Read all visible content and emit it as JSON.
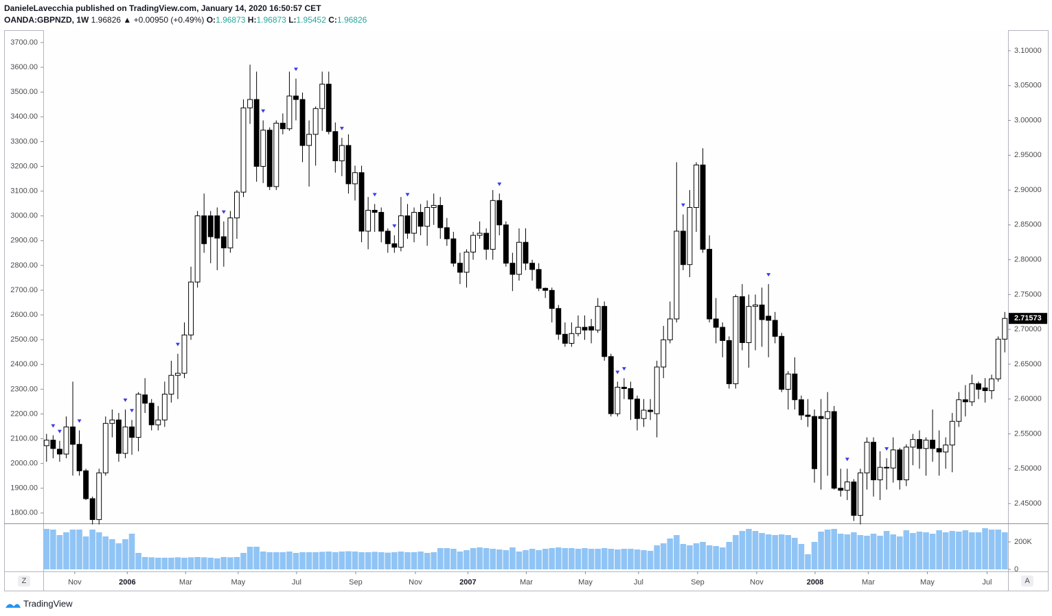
{
  "header": {
    "published": "DanieleLavecchia published on TradingView.com, January 14, 2020 16:50:57 CET",
    "symbol": "OANDA:GBPNZD, 1W",
    "last": "1.96826",
    "change": "▲ +0.00950 (+0.49%)",
    "o_label": "O:",
    "o": "1.96873",
    "h_label": "H:",
    "h": "1.96873",
    "l_label": "L:",
    "l": "1.95452",
    "c_label": "C:",
    "c": "1.96826"
  },
  "footer": {
    "logo": "TradingView",
    "left_button": "Z",
    "right_button": "A"
  },
  "chart_data": {
    "type": "candlestick",
    "grid": false,
    "up_color": "#ffffff",
    "down_color": "#000000",
    "volume_color": "#90c4f5",
    "signal_color": "#3b3bea",
    "open": [
      2.533,
      2.541,
      2.528,
      2.521,
      2.56,
      2.535,
      2.497,
      2.457,
      2.427,
      2.494,
      2.565,
      2.57,
      2.522,
      2.56,
      2.545,
      2.606,
      2.594,
      2.563,
      2.57,
      2.607,
      2.634,
      2.637,
      2.692,
      2.768,
      2.863,
      2.863,
      2.863,
      2.833,
      2.817,
      2.86,
      2.897,
      3.018,
      3.03,
      2.934,
      2.986,
      2.905,
      2.996,
      2.988,
      3.035,
      3.03,
      2.964,
      2.98,
      3.017,
      3.052,
      2.984,
      2.942,
      2.964,
      2.909,
      2.925,
      2.841,
      2.871,
      2.868,
      2.841,
      2.823,
      2.818,
      2.863,
      2.838,
      2.868,
      2.848,
      2.875,
      2.878,
      2.846,
      2.83,
      2.795,
      2.782,
      2.811,
      2.835,
      2.838,
      2.815,
      2.885,
      2.85,
      2.795,
      2.779,
      2.825,
      2.795,
      2.786,
      2.759,
      2.756,
      2.73,
      2.693,
      2.68,
      2.694,
      2.703,
      2.704,
      2.699,
      2.733,
      2.661,
      2.579,
      2.617,
      2.615,
      2.6,
      2.572,
      2.584,
      2.579,
      2.646,
      2.685,
      2.715,
      2.841,
      2.793,
      2.875,
      2.936,
      2.815,
      2.715,
      2.703,
      2.684,
      2.622,
      2.747,
      2.681,
      2.733,
      2.735,
      2.719,
      2.713,
      2.69,
      2.614,
      2.636,
      2.599,
      2.577,
      2.575,
      2.575,
      2.572,
      2.582,
      2.472,
      2.469,
      2.481,
      2.433,
      2.494,
      2.538,
      2.484,
      2.502,
      2.501,
      2.527,
      2.484,
      2.531,
      2.542,
      2.529,
      2.541,
      2.529,
      2.524,
      2.534,
      2.568,
      2.599,
      2.596,
      2.622,
      2.616,
      2.612,
      2.629,
      2.686
    ],
    "high": [
      2.55,
      2.548,
      2.54,
      2.575,
      2.625,
      2.555,
      2.5,
      2.46,
      2.5,
      2.575,
      2.585,
      2.58,
      2.585,
      2.57,
      2.61,
      2.63,
      2.6,
      2.59,
      2.625,
      2.655,
      2.665,
      2.71,
      2.79,
      2.87,
      2.895,
      2.87,
      2.875,
      2.855,
      2.87,
      2.9,
      3.03,
      3.08,
      3.07,
      3.0,
      2.99,
      3.0,
      3.01,
      3.07,
      3.06,
      3.04,
      3.0,
      3.02,
      3.07,
      3.07,
      2.997,
      2.975,
      2.98,
      2.935,
      2.935,
      2.89,
      2.88,
      2.875,
      2.845,
      2.835,
      2.89,
      2.88,
      2.875,
      2.88,
      2.885,
      2.895,
      2.89,
      2.86,
      2.84,
      2.81,
      2.815,
      2.84,
      2.855,
      2.845,
      2.9,
      2.895,
      2.855,
      2.81,
      2.845,
      2.845,
      2.8,
      2.795,
      2.76,
      2.76,
      2.735,
      2.71,
      2.71,
      2.72,
      2.72,
      2.715,
      2.745,
      2.74,
      2.665,
      2.625,
      2.63,
      2.625,
      2.605,
      2.6,
      2.6,
      2.655,
      2.705,
      2.74,
      2.94,
      2.865,
      2.9,
      2.94,
      2.96,
      2.835,
      2.745,
      2.71,
      2.69,
      2.75,
      2.765,
      2.75,
      2.75,
      2.76,
      2.765,
      2.725,
      2.695,
      2.64,
      2.66,
      2.605,
      2.6,
      2.585,
      2.6,
      2.61,
      2.59,
      2.5,
      2.5,
      2.485,
      2.5,
      2.545,
      2.545,
      2.525,
      2.515,
      2.545,
      2.53,
      2.535,
      2.55,
      2.555,
      2.545,
      2.585,
      2.555,
      2.545,
      2.58,
      2.61,
      2.62,
      2.635,
      2.625,
      2.63,
      2.635,
      2.69,
      2.725
    ],
    "low": [
      2.51,
      2.515,
      2.51,
      2.515,
      2.49,
      2.49,
      2.455,
      2.42,
      2.42,
      2.49,
      2.545,
      2.51,
      2.515,
      2.52,
      2.525,
      2.58,
      2.555,
      2.555,
      2.56,
      2.595,
      2.6,
      2.63,
      2.685,
      2.76,
      2.81,
      2.795,
      2.785,
      2.79,
      2.81,
      2.83,
      2.89,
      2.995,
      2.912,
      2.91,
      2.9,
      2.9,
      2.98,
      2.985,
      3.0,
      2.94,
      2.905,
      2.935,
      2.985,
      2.98,
      2.925,
      2.92,
      2.895,
      2.885,
      2.825,
      2.815,
      2.84,
      2.825,
      2.81,
      2.81,
      2.812,
      2.83,
      2.825,
      2.835,
      2.82,
      2.85,
      2.83,
      2.82,
      2.79,
      2.765,
      2.76,
      2.8,
      2.83,
      2.8,
      2.8,
      2.835,
      2.79,
      2.755,
      2.77,
      2.785,
      2.77,
      2.755,
      2.745,
      2.71,
      2.685,
      2.675,
      2.675,
      2.69,
      2.685,
      2.68,
      2.695,
      2.655,
      2.575,
      2.575,
      2.6,
      2.57,
      2.555,
      2.56,
      2.57,
      2.545,
      2.63,
      2.68,
      2.71,
      2.785,
      2.775,
      2.84,
      2.81,
      2.71,
      2.68,
      2.66,
      2.615,
      2.615,
      2.67,
      2.645,
      2.67,
      2.675,
      2.66,
      2.68,
      2.61,
      2.585,
      2.585,
      2.57,
      2.56,
      2.48,
      2.47,
      2.49,
      2.47,
      2.46,
      2.455,
      2.425,
      2.42,
      2.47,
      2.46,
      2.455,
      2.47,
      2.48,
      2.47,
      2.475,
      2.505,
      2.5,
      2.49,
      2.51,
      2.49,
      2.5,
      2.495,
      2.56,
      2.575,
      2.59,
      2.6,
      2.595,
      2.6,
      2.625,
      2.667
    ],
    "close": [
      2.541,
      2.529,
      2.521,
      2.56,
      2.535,
      2.497,
      2.457,
      2.427,
      2.494,
      2.565,
      2.57,
      2.522,
      2.56,
      2.545,
      2.607,
      2.594,
      2.563,
      2.57,
      2.607,
      2.634,
      2.637,
      2.692,
      2.768,
      2.863,
      2.823,
      2.833,
      2.831,
      2.817,
      2.86,
      2.897,
      3.018,
      3.03,
      2.934,
      2.986,
      2.905,
      2.996,
      2.988,
      3.035,
      3.03,
      2.964,
      2.98,
      3.017,
      3.052,
      2.984,
      2.942,
      2.964,
      2.909,
      2.925,
      2.841,
      2.871,
      2.868,
      2.841,
      2.823,
      2.818,
      2.863,
      2.838,
      2.868,
      2.848,
      2.875,
      2.878,
      2.846,
      2.83,
      2.795,
      2.782,
      2.811,
      2.835,
      2.838,
      2.815,
      2.885,
      2.85,
      2.795,
      2.779,
      2.825,
      2.795,
      2.786,
      2.759,
      2.756,
      2.73,
      2.693,
      2.68,
      2.694,
      2.703,
      2.699,
      2.699,
      2.733,
      2.661,
      2.579,
      2.617,
      2.615,
      2.6,
      2.572,
      2.584,
      2.582,
      2.646,
      2.685,
      2.715,
      2.841,
      2.793,
      2.875,
      2.936,
      2.815,
      2.715,
      2.703,
      2.684,
      2.622,
      2.747,
      2.681,
      2.733,
      2.735,
      2.714,
      2.713,
      2.69,
      2.614,
      2.636,
      2.599,
      2.577,
      2.575,
      2.5,
      2.572,
      2.582,
      2.472,
      2.469,
      2.481,
      2.433,
      2.494,
      2.538,
      2.484,
      2.502,
      2.501,
      2.527,
      2.484,
      2.531,
      2.542,
      2.529,
      2.541,
      2.529,
      2.524,
      2.534,
      2.568,
      2.599,
      2.596,
      2.622,
      2.614,
      2.612,
      2.629,
      2.686,
      2.71573
    ],
    "volume": [
      295000,
      290000,
      250000,
      270000,
      290000,
      290000,
      240000,
      290000,
      270000,
      240000,
      220000,
      190000,
      220000,
      260000,
      120000,
      90000,
      88000,
      85000,
      85000,
      85000,
      88000,
      85000,
      88000,
      90000,
      88000,
      85000,
      80000,
      90000,
      88000,
      90000,
      120000,
      165000,
      165000,
      130000,
      125000,
      125000,
      125000,
      130000,
      120000,
      125000,
      125000,
      125000,
      128000,
      130000,
      125000,
      130000,
      132000,
      130000,
      125000,
      125000,
      128000,
      125000,
      122000,
      125000,
      130000,
      125000,
      125000,
      130000,
      120000,
      125000,
      155000,
      155000,
      150000,
      130000,
      140000,
      155000,
      160000,
      155000,
      150000,
      145000,
      140000,
      160000,
      130000,
      140000,
      150000,
      140000,
      150000,
      155000,
      160000,
      155000,
      155000,
      150000,
      155000,
      150000,
      150000,
      155000,
      150000,
      145000,
      150000,
      150000,
      145000,
      140000,
      135000,
      175000,
      190000,
      225000,
      250000,
      185000,
      175000,
      190000,
      200000,
      175000,
      170000,
      160000,
      200000,
      250000,
      280000,
      295000,
      280000,
      265000,
      255000,
      250000,
      255000,
      250000,
      230000,
      185000,
      110000,
      200000,
      275000,
      290000,
      295000,
      260000,
      255000,
      270000,
      250000,
      245000,
      260000,
      245000,
      280000,
      255000,
      240000,
      285000,
      265000,
      275000,
      270000,
      260000,
      285000,
      270000,
      280000,
      275000,
      285000,
      270000,
      270000,
      300000,
      290000,
      290000,
      270000
    ],
    "signals": [
      1,
      2,
      5,
      12,
      13,
      20,
      27,
      33,
      38,
      45,
      50,
      53,
      55,
      69,
      87,
      88,
      97,
      110,
      122,
      128
    ],
    "xlim": [
      -0.5,
      146.5
    ],
    "xticks": [
      {
        "value": 4.3,
        "label": "Nov"
      },
      {
        "value": 12.3,
        "label": "2006"
      },
      {
        "value": 21.2,
        "label": "Mar"
      },
      {
        "value": 29.2,
        "label": "May"
      },
      {
        "value": 38.1,
        "label": "Jul"
      },
      {
        "value": 47.1,
        "label": "Sep"
      },
      {
        "value": 56.2,
        "label": "Nov"
      },
      {
        "value": 64.2,
        "label": "2007"
      },
      {
        "value": 73.1,
        "label": "Mar"
      },
      {
        "value": 82.1,
        "label": "May"
      },
      {
        "value": 90.2,
        "label": "Jul"
      },
      {
        "value": 99.2,
        "label": "Sep"
      },
      {
        "value": 108.2,
        "label": "Nov"
      },
      {
        "value": 117.1,
        "label": "2008"
      },
      {
        "value": 125.2,
        "label": "Mar"
      },
      {
        "value": 134.2,
        "label": "May"
      },
      {
        "value": 143.3,
        "label": "Jul"
      }
    ],
    "ylim": [
      2.4215,
      3.1295
    ],
    "yticks": [
      {
        "value": 2.45,
        "label": "2.45000"
      },
      {
        "value": 2.5,
        "label": "2.50000"
      },
      {
        "value": 2.55,
        "label": "2.55000"
      },
      {
        "value": 2.6,
        "label": "2.60000"
      },
      {
        "value": 2.65,
        "label": "2.65000"
      },
      {
        "value": 2.7,
        "label": "2.70000"
      },
      {
        "value": 2.75,
        "label": "2.75000"
      },
      {
        "value": 2.8,
        "label": "2.80000"
      },
      {
        "value": 2.85,
        "label": "2.85000"
      },
      {
        "value": 2.9,
        "label": "2.90000"
      },
      {
        "value": 2.95,
        "label": "2.95000"
      },
      {
        "value": 3.0,
        "label": "3.00000"
      },
      {
        "value": 3.05,
        "label": "3.05000"
      },
      {
        "value": 3.1,
        "label": "3.10000"
      }
    ],
    "y2lim": [
      1758,
      3750
    ],
    "y2ticks": [
      {
        "value": 1800,
        "label": "1800.00"
      },
      {
        "value": 1900,
        "label": "1900.00"
      },
      {
        "value": 2000,
        "label": "2000.00"
      },
      {
        "value": 2100,
        "label": "2100.00"
      },
      {
        "value": 2200,
        "label": "2200.00"
      },
      {
        "value": 2300,
        "label": "2300.00"
      },
      {
        "value": 2400,
        "label": "2400.00"
      },
      {
        "value": 2500,
        "label": "2500.00"
      },
      {
        "value": 2600,
        "label": "2600.00"
      },
      {
        "value": 2700,
        "label": "2700.00"
      },
      {
        "value": 2800,
        "label": "2800.00"
      },
      {
        "value": 2900,
        "label": "2900.00"
      },
      {
        "value": 3000,
        "label": "3000.00"
      },
      {
        "value": 3100,
        "label": "3100.00"
      },
      {
        "value": 3200,
        "label": "3200.00"
      },
      {
        "value": 3300,
        "label": "3300.00"
      },
      {
        "value": 3400,
        "label": "3400.00"
      },
      {
        "value": 3500,
        "label": "3500.00"
      },
      {
        "value": 3600,
        "label": "3600.00"
      },
      {
        "value": 3700,
        "label": "3700.00"
      }
    ],
    "vlim": [
      -15000,
      330000
    ],
    "vticks": [
      0,
      {
        "value": 200000,
        "label": "200K"
      }
    ]
  }
}
